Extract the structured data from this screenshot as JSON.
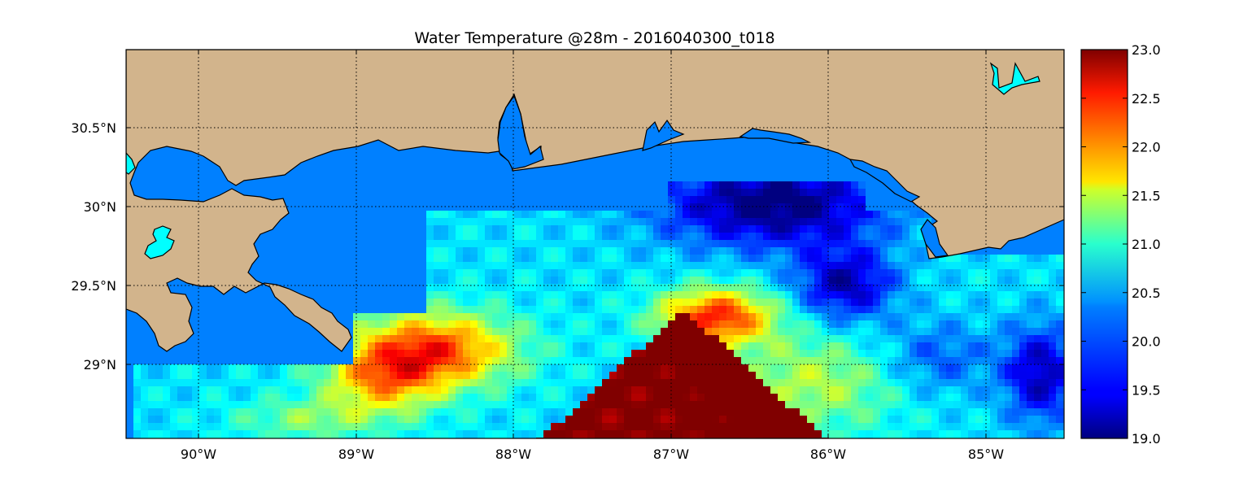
{
  "title": "Water Temperature @28m - 2016040300_t018",
  "x_ticks": [
    "90°W",
    "89°W",
    "88°W",
    "87°W",
    "86°W",
    "85°W"
  ],
  "y_ticks": [
    "30.5°N",
    "30°N",
    "29.5°N",
    "29°N"
  ],
  "colorbar": {
    "min": 19.0,
    "max": 23.0,
    "ticks": [
      "23.0",
      "22.5",
      "22.0",
      "21.5",
      "21.0",
      "20.5",
      "20.0",
      "19.5",
      "19.0"
    ],
    "colormap": "jet"
  },
  "map": {
    "extent_lon": [
      -90.46,
      -84.5
    ],
    "extent_lat": [
      28.55,
      31.0
    ],
    "grid": true,
    "colors": {
      "land": "#d2b48c",
      "inland_water": "#00ffff",
      "ocean_no_data": "#0080ff"
    }
  }
}
